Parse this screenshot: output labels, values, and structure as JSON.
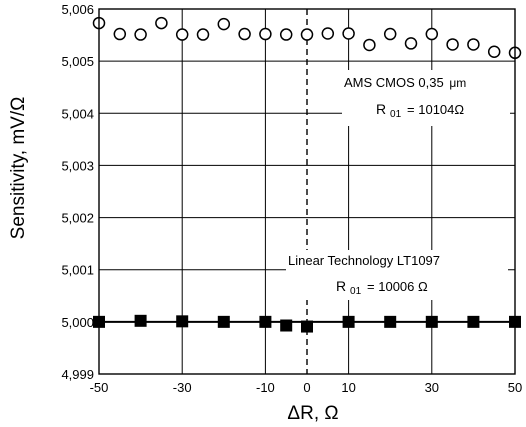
{
  "chart_data": {
    "type": "scatter",
    "xlabel": "ΔR, Ω",
    "ylabel": "Sensitivity,   mV/Ω",
    "xlim": [
      -50,
      50
    ],
    "ylim": [
      4.999,
      5.006
    ],
    "x_ticks": [
      -50,
      -30,
      -10,
      0,
      10,
      30,
      50
    ],
    "x_tick_labels": [
      "-50",
      "-30",
      "-10",
      "0",
      "10",
      "30",
      "50"
    ],
    "y_ticks": [
      4.999,
      5.0,
      5.001,
      5.002,
      5.003,
      5.004,
      5.005,
      5.006
    ],
    "y_tick_labels": [
      "4,999",
      "5,000",
      "5,001",
      "5,002",
      "5,003",
      "5,004",
      "5,005",
      "5,006"
    ],
    "grid": true,
    "vertical_dashed_line_x": 0,
    "series": [
      {
        "marker": "open-circle",
        "color": "#000000",
        "x": [
          -50,
          -45,
          -40,
          -35,
          -30,
          -25,
          -20,
          -15,
          -10,
          -5,
          0,
          5,
          10,
          15,
          20,
          25,
          30,
          35,
          40,
          45,
          50
        ],
        "y": [
          5.00573,
          5.00552,
          5.00551,
          5.00573,
          5.00551,
          5.00551,
          5.00571,
          5.00552,
          5.00552,
          5.00551,
          5.00551,
          5.00553,
          5.00553,
          5.00531,
          5.00552,
          5.00534,
          5.00552,
          5.00532,
          5.00532,
          5.00518,
          5.00516
        ]
      },
      {
        "marker": "filled-square",
        "color": "#000000",
        "x": [
          -50,
          -40,
          -30,
          -20,
          -10,
          -5,
          0,
          10,
          20,
          30,
          40,
          50
        ],
        "y": [
          5.0,
          5.00002,
          5.00001,
          5.0,
          5.0,
          4.99993,
          4.99991,
          5.0,
          5.0,
          5.0,
          5.0,
          5.0
        ]
      }
    ],
    "annotations": {
      "ams_title": "AMS CMOS 0,35",
      "ams_unit": "μm",
      "ams_r_main": "R",
      "ams_r_sub": "01",
      "ams_r_value": "= 10104Ω",
      "lt_title": "Linear Technology LT1097",
      "lt_r_main": "R",
      "lt_r_sub": "01",
      "lt_r_value": "= 10006 Ω"
    }
  }
}
